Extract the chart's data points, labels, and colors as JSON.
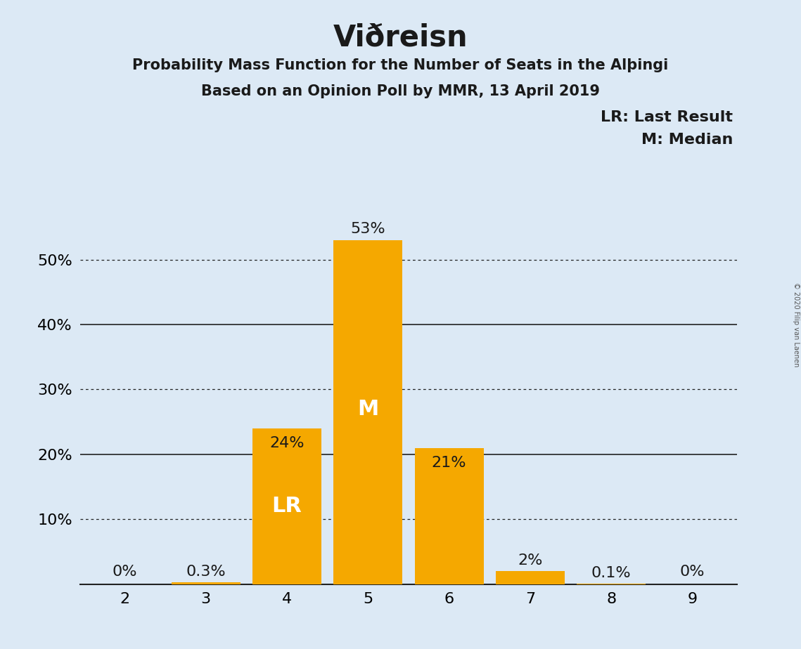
{
  "title": "Viðreisn",
  "subtitle1": "Probability Mass Function for the Number of Seats in the Alþingi",
  "subtitle2": "Based on an Opinion Poll by MMR, 13 April 2019",
  "copyright": "© 2020 Filip van Laenen",
  "categories": [
    2,
    3,
    4,
    5,
    6,
    7,
    8,
    9
  ],
  "values": [
    0.0,
    0.3,
    24.0,
    53.0,
    21.0,
    2.0,
    0.1,
    0.0
  ],
  "labels": [
    "0%",
    "0.3%",
    "24%",
    "53%",
    "21%",
    "2%",
    "0.1%",
    "0%"
  ],
  "bar_color": "#F5A800",
  "background_color": "#DCE9F5",
  "text_color": "#1a1a1a",
  "white": "#ffffff",
  "lr_bar": 4,
  "median_bar": 5,
  "lr_label": "LR",
  "median_label": "M",
  "legend_lr": "LR: Last Result",
  "legend_m": "M: Median",
  "yticks": [
    0,
    10,
    20,
    30,
    40,
    50
  ],
  "ytick_labels": [
    "",
    "10%",
    "20%",
    "30%",
    "40%",
    "50%"
  ],
  "ylim": [
    0,
    60
  ],
  "solid_gridlines": [
    20,
    40
  ],
  "dotted_gridlines": [
    10,
    30,
    50
  ],
  "title_fontsize": 30,
  "subtitle_fontsize": 15,
  "axis_fontsize": 16,
  "label_fontsize": 16,
  "legend_fontsize": 16,
  "lr_m_fontsize": 22
}
